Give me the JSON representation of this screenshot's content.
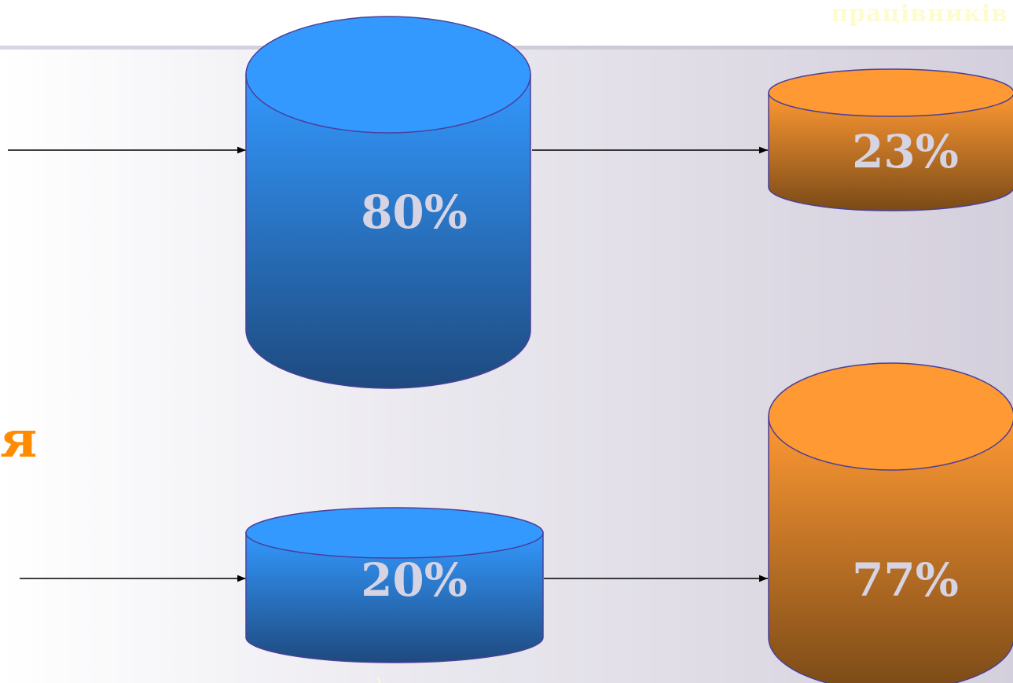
{
  "header": {
    "title": "працівників"
  },
  "side_label": {
    "text": "я"
  },
  "diagram": {
    "cylinders": [
      {
        "id": "blue-large",
        "label": "80%",
        "color": "blue"
      },
      {
        "id": "orange-small",
        "label": "23%",
        "color": "orange"
      },
      {
        "id": "blue-small",
        "label": "20%",
        "color": "blue"
      },
      {
        "id": "orange-large",
        "label": "77%",
        "color": "orange"
      }
    ]
  },
  "colors": {
    "blue_top": "#3399ff",
    "blue_bottom": "#1e4a7f",
    "orange_top": "#ff9933",
    "orange_bottom": "#7a4a17",
    "outline": "#4b3f99",
    "title_text": "#fffbcf",
    "side_label_text": "#ff8c00",
    "label_text": "#d6d3e3"
  }
}
